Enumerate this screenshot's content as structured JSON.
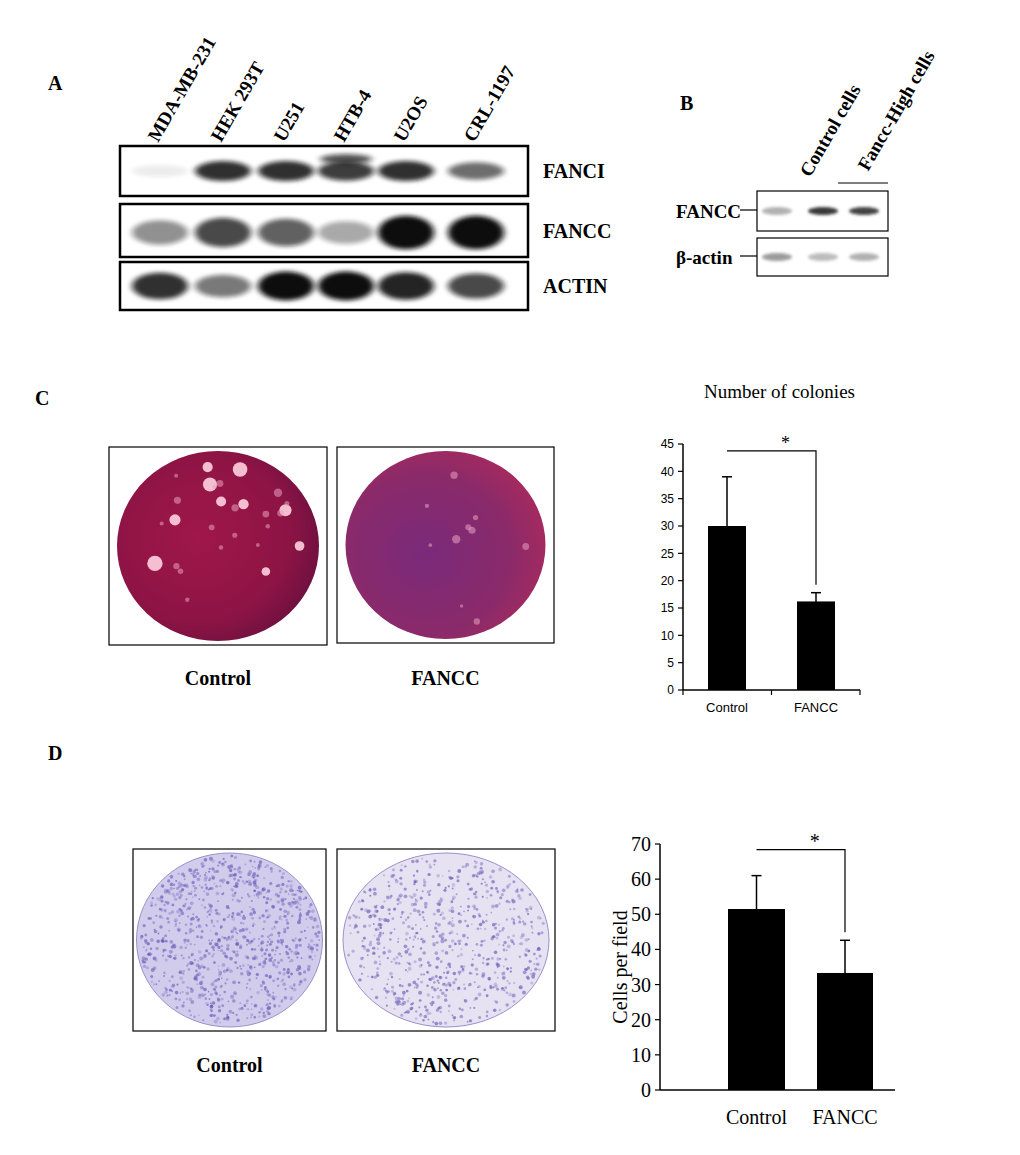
{
  "figure": {
    "panel_labels": [
      "A",
      "B",
      "C",
      "D"
    ],
    "blot_a": {
      "lanes": [
        "MDA-MB-231",
        "HEK 293T",
        "U251",
        "HTB-4",
        "U2OS",
        "CRL-1197"
      ],
      "rows": [
        "FANCI",
        "FANCC",
        "ACTIN"
      ]
    },
    "blot_b": {
      "lanes": [
        "Control cells",
        "Fancc-High cells"
      ],
      "rows": [
        "FANCC",
        "β-actin"
      ]
    },
    "images_c": [
      "Control",
      "FANCC"
    ],
    "images_d": [
      "Control",
      "FANCC"
    ]
  },
  "chart_data": [
    {
      "type": "bar",
      "title": "Number of colonies",
      "categories": [
        "Control",
        "FANCC"
      ],
      "values": [
        30,
        16.2
      ],
      "errors": [
        9,
        1.6
      ],
      "color": "#000000",
      "ylim": [
        0,
        45
      ],
      "yticks": [
        0,
        5,
        10,
        15,
        20,
        25,
        30,
        35,
        40,
        45
      ],
      "annotations": [
        "*"
      ],
      "grid": false
    },
    {
      "type": "bar",
      "y_label": "Cells per field",
      "categories": [
        "Control",
        "FANCC"
      ],
      "values": [
        51.5,
        33.3
      ],
      "errors": [
        9.5,
        9.3
      ],
      "color": "#000000",
      "ylim": [
        0,
        70
      ],
      "yticks": [
        0,
        10,
        20,
        30,
        40,
        50,
        60,
        70
      ],
      "annotations": [
        "*"
      ],
      "grid": false
    }
  ]
}
